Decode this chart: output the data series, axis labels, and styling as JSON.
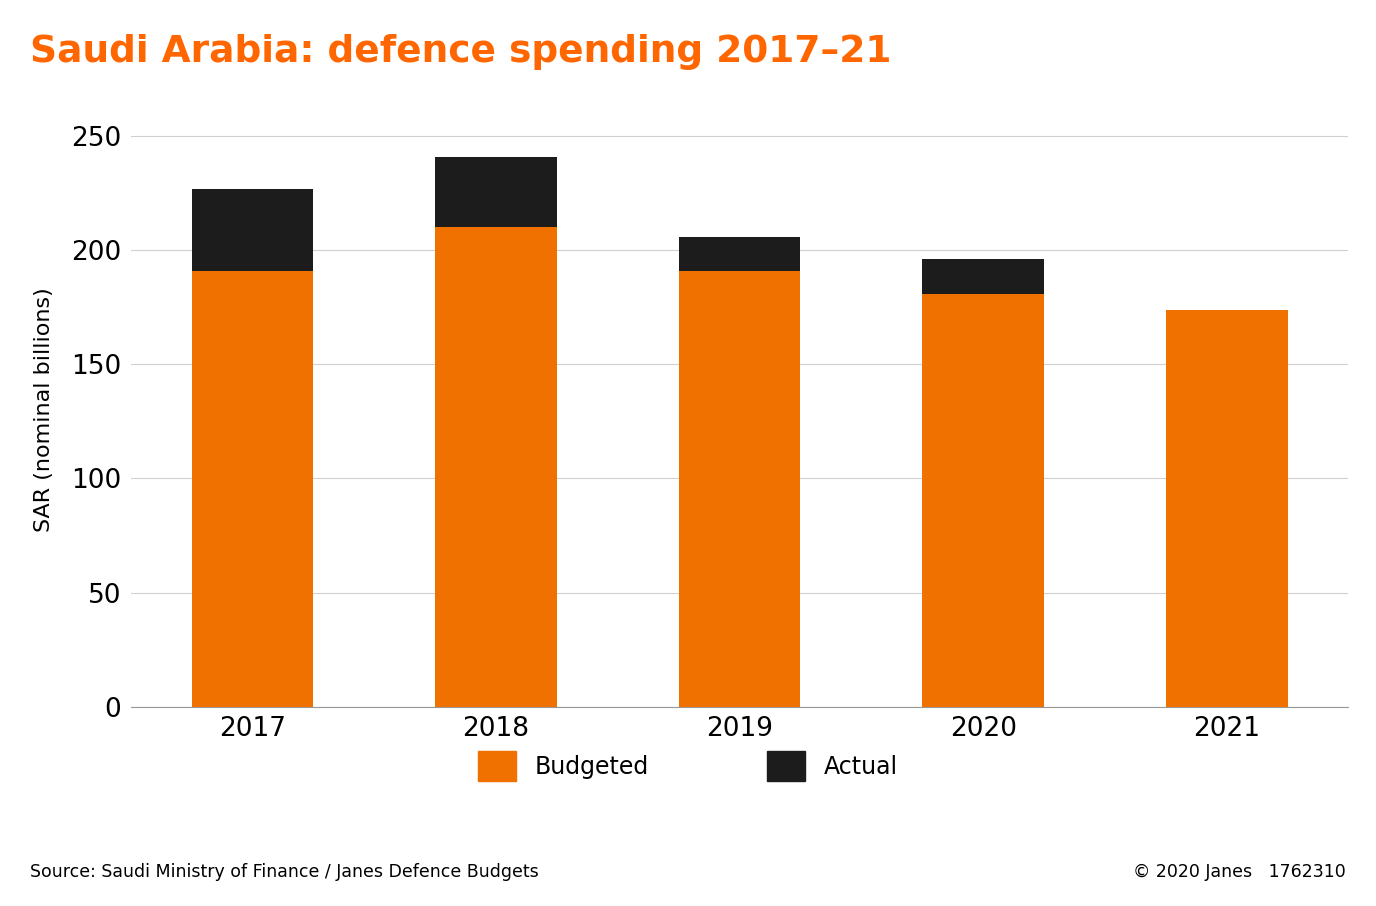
{
  "title": "Saudi Arabia: defence spending 2017–21",
  "title_bg_color": "#1c1c1c",
  "title_text_color": "#ff6600",
  "years": [
    "2017",
    "2018",
    "2019",
    "2020",
    "2021"
  ],
  "budgeted": [
    191,
    210,
    191,
    181,
    174
  ],
  "overspend": [
    36,
    31,
    15,
    15,
    0
  ],
  "bar_color_budgeted": "#f07000",
  "bar_color_actual": "#1c1c1c",
  "ylabel": "SAR (nominal billions)",
  "ylim": [
    0,
    260
  ],
  "yticks": [
    0,
    50,
    100,
    150,
    200,
    250
  ],
  "source_text": "Source: Saudi Ministry of Finance / Janes Defence Budgets",
  "copyright_text": "© 2020 Janes   1762310",
  "legend_budgeted": "Budgeted",
  "legend_actual": "Actual",
  "bg_color": "#ffffff",
  "grid_color": "#d0d0d0",
  "bar_width": 0.5
}
